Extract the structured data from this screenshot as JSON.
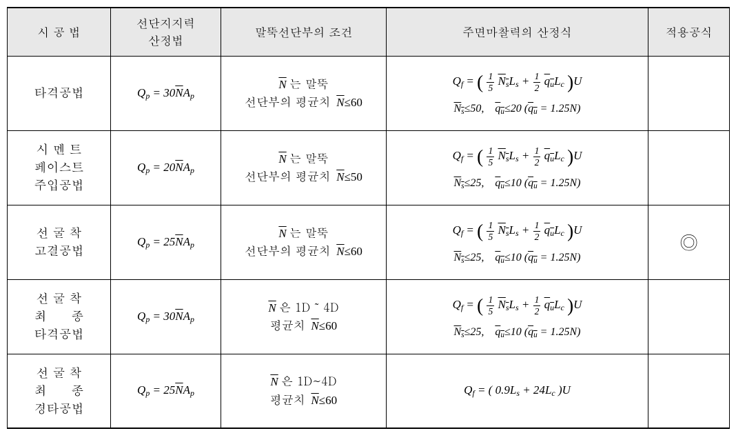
{
  "colors": {
    "header_bg": "#e8e8e8",
    "border": "#000000",
    "background": "#ffffff"
  },
  "fontsizes": {
    "header": 17,
    "body": 17,
    "method": 18,
    "apply_mark": 26
  },
  "columns": {
    "c1": "시 공 법",
    "c2": "선단지지력\n산정법",
    "c3": "말뚝선단부의 조건",
    "c4": "주면마찰력의 산정식",
    "c5": "적용공식"
  },
  "rows": [
    {
      "method": "타격공법",
      "qp_coef": "30",
      "cond_prefix_kor": "는 말뚝",
      "cond_line2_kor": "선단부의 평균치",
      "cond_limit": "60",
      "ns_limit": "50",
      "qu_limit": "20",
      "qu_coef": "1.25",
      "qf_type": "std",
      "apply": ""
    },
    {
      "method": "시 멘 트\n페이스트\n주입공법",
      "qp_coef": "20",
      "cond_prefix_kor": "는 말뚝",
      "cond_line2_kor": "선단부의 평균치",
      "cond_limit": "50",
      "ns_limit": "25",
      "qu_limit": "10",
      "qu_coef": "1.25",
      "qf_type": "std",
      "apply": ""
    },
    {
      "method": "선 굴 착\n고결공법",
      "qp_coef": "25",
      "cond_prefix_kor": "는 말뚝",
      "cond_line2_kor": "선단부의 평균치",
      "cond_limit": "60",
      "ns_limit": "25",
      "qu_limit": "10",
      "qu_coef": "1.25",
      "qf_type": "std",
      "apply": "◎"
    },
    {
      "method": "선 굴 착\n최      종\n타격공법",
      "qp_coef": "30",
      "cond_prefix_kor": "은 1D ˜ 4D",
      "cond_line2_kor": "평균치",
      "cond_limit": "60",
      "ns_limit": "25",
      "qu_limit": "10",
      "qu_coef": "1.25",
      "qf_type": "std",
      "apply": ""
    },
    {
      "method": "선 굴 착\n최      종\n경타공법",
      "qp_coef": "25",
      "cond_prefix_kor": "은 1D~4D",
      "cond_line2_kor": "평균치",
      "cond_limit": "60",
      "qf_type": "simple",
      "qf_simple_a": "0.9",
      "qf_simple_b": "24",
      "apply": ""
    }
  ]
}
